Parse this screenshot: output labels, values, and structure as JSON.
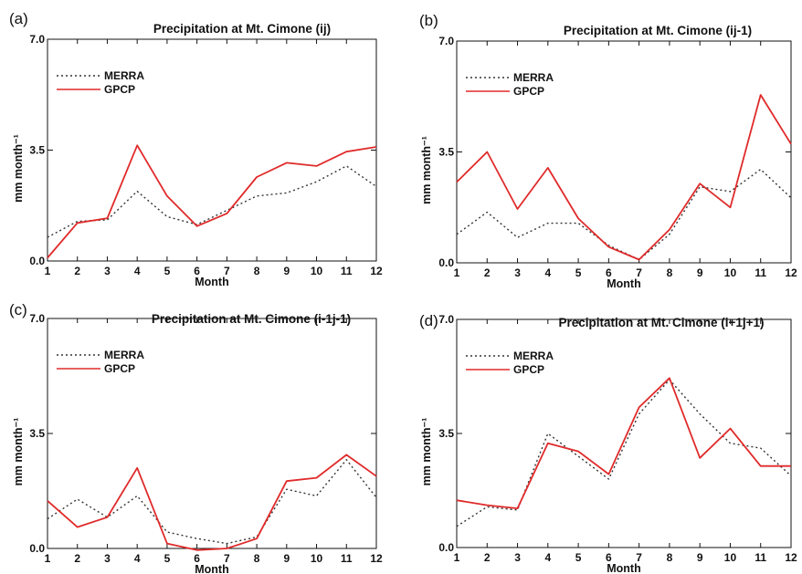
{
  "chart_data": [
    {
      "type": "line",
      "panel_label": "(a)",
      "title": "Precipitation at Mt. Cimone  (ij)",
      "xlabel": "Month",
      "ylabel": "mm month⁻¹",
      "x": [
        1,
        2,
        3,
        4,
        5,
        6,
        7,
        8,
        9,
        10,
        11,
        12
      ],
      "x_ticks": [
        "1",
        "2",
        "3",
        "4",
        "5",
        "6",
        "7",
        "8",
        "9",
        "10",
        "11",
        "12"
      ],
      "y_ticks": [
        "0.0",
        "3.5",
        "7.0"
      ],
      "ylim": [
        0,
        7
      ],
      "xlim": [
        1,
        12
      ],
      "grid": false,
      "legend_position": "top-left",
      "series": [
        {
          "name": "MERRA",
          "color": "#333333",
          "style": "dotted",
          "values": [
            0.75,
            1.25,
            1.3,
            2.2,
            1.4,
            1.15,
            1.6,
            2.05,
            2.15,
            2.5,
            3.0,
            2.35
          ]
        },
        {
          "name": "GPCP",
          "color": "#e02a2a",
          "style": "solid",
          "values": [
            0.1,
            1.2,
            1.35,
            3.65,
            2.05,
            1.1,
            1.5,
            2.65,
            3.1,
            3.0,
            3.45,
            3.6
          ]
        }
      ]
    },
    {
      "type": "line",
      "panel_label": "(b)",
      "title": "Precipitation at Mt. Cimone  (ij-1)",
      "xlabel": "Month",
      "ylabel": "mm month⁻¹",
      "x": [
        1,
        2,
        3,
        4,
        5,
        6,
        7,
        8,
        9,
        10,
        11,
        12
      ],
      "x_ticks": [
        "1",
        "2",
        "3",
        "4",
        "5",
        "6",
        "7",
        "8",
        "9",
        "10",
        "11",
        "12"
      ],
      "y_ticks": [
        "0.0",
        "3.5",
        "7.0"
      ],
      "ylim": [
        0,
        7
      ],
      "xlim": [
        1,
        12
      ],
      "grid": false,
      "legend_position": "top-left",
      "series": [
        {
          "name": "MERRA",
          "color": "#333333",
          "style": "dotted",
          "values": [
            0.9,
            1.6,
            0.8,
            1.25,
            1.25,
            0.55,
            0.1,
            0.9,
            2.4,
            2.25,
            2.95,
            2.05
          ]
        },
        {
          "name": "GPCP",
          "color": "#e02a2a",
          "style": "solid",
          "values": [
            2.55,
            3.5,
            1.7,
            3.0,
            1.4,
            0.5,
            0.1,
            1.05,
            2.5,
            1.75,
            5.3,
            3.75
          ]
        }
      ]
    },
    {
      "type": "line",
      "panel_label": "(c)",
      "title": "Precipitation at Mt. Cimone  (i-1j-1)",
      "xlabel": "Month",
      "ylabel": "mm month⁻¹",
      "x": [
        1,
        2,
        3,
        4,
        5,
        6,
        7,
        8,
        9,
        10,
        11,
        12
      ],
      "x_ticks": [
        "1",
        "2",
        "3",
        "4",
        "5",
        "6",
        "7",
        "8",
        "9",
        "10",
        "11",
        "12"
      ],
      "y_ticks": [
        "0.0",
        "3.5",
        "7.0"
      ],
      "ylim": [
        0,
        7
      ],
      "xlim": [
        1,
        12
      ],
      "grid": false,
      "legend_position": "top-left",
      "series": [
        {
          "name": "MERRA",
          "color": "#333333",
          "style": "dotted",
          "values": [
            0.9,
            1.5,
            0.95,
            1.6,
            0.5,
            0.3,
            0.15,
            0.35,
            1.8,
            1.6,
            2.7,
            1.55
          ]
        },
        {
          "name": "GPCP",
          "color": "#e02a2a",
          "style": "solid",
          "values": [
            1.45,
            0.65,
            0.95,
            2.45,
            0.15,
            -0.05,
            0.0,
            0.3,
            2.05,
            2.15,
            2.85,
            2.2
          ]
        }
      ]
    },
    {
      "type": "line",
      "panel_label": "(d)",
      "title": "Precipitation at Mt. Cimone  (i+1j+1)",
      "xlabel": "Month",
      "ylabel": "mm month⁻¹",
      "x": [
        1,
        2,
        3,
        4,
        5,
        6,
        7,
        8,
        9,
        10,
        11,
        12
      ],
      "x_ticks": [
        "1",
        "2",
        "3",
        "4",
        "5",
        "6",
        "7",
        "8",
        "9",
        "10",
        "11",
        "12"
      ],
      "y_ticks": [
        "0.0",
        "3.5",
        "7.0"
      ],
      "ylim": [
        0,
        7
      ],
      "xlim": [
        1,
        12
      ],
      "grid": false,
      "legend_position": "top-left",
      "series": [
        {
          "name": "MERRA",
          "color": "#333333",
          "style": "dotted",
          "values": [
            0.65,
            1.25,
            1.15,
            3.5,
            2.8,
            2.1,
            4.1,
            5.15,
            4.1,
            3.2,
            3.05,
            2.2
          ]
        },
        {
          "name": "GPCP",
          "color": "#e02a2a",
          "style": "solid",
          "values": [
            1.45,
            1.3,
            1.2,
            3.2,
            2.95,
            2.25,
            4.3,
            5.2,
            2.75,
            3.65,
            2.5,
            2.5
          ]
        }
      ]
    }
  ]
}
